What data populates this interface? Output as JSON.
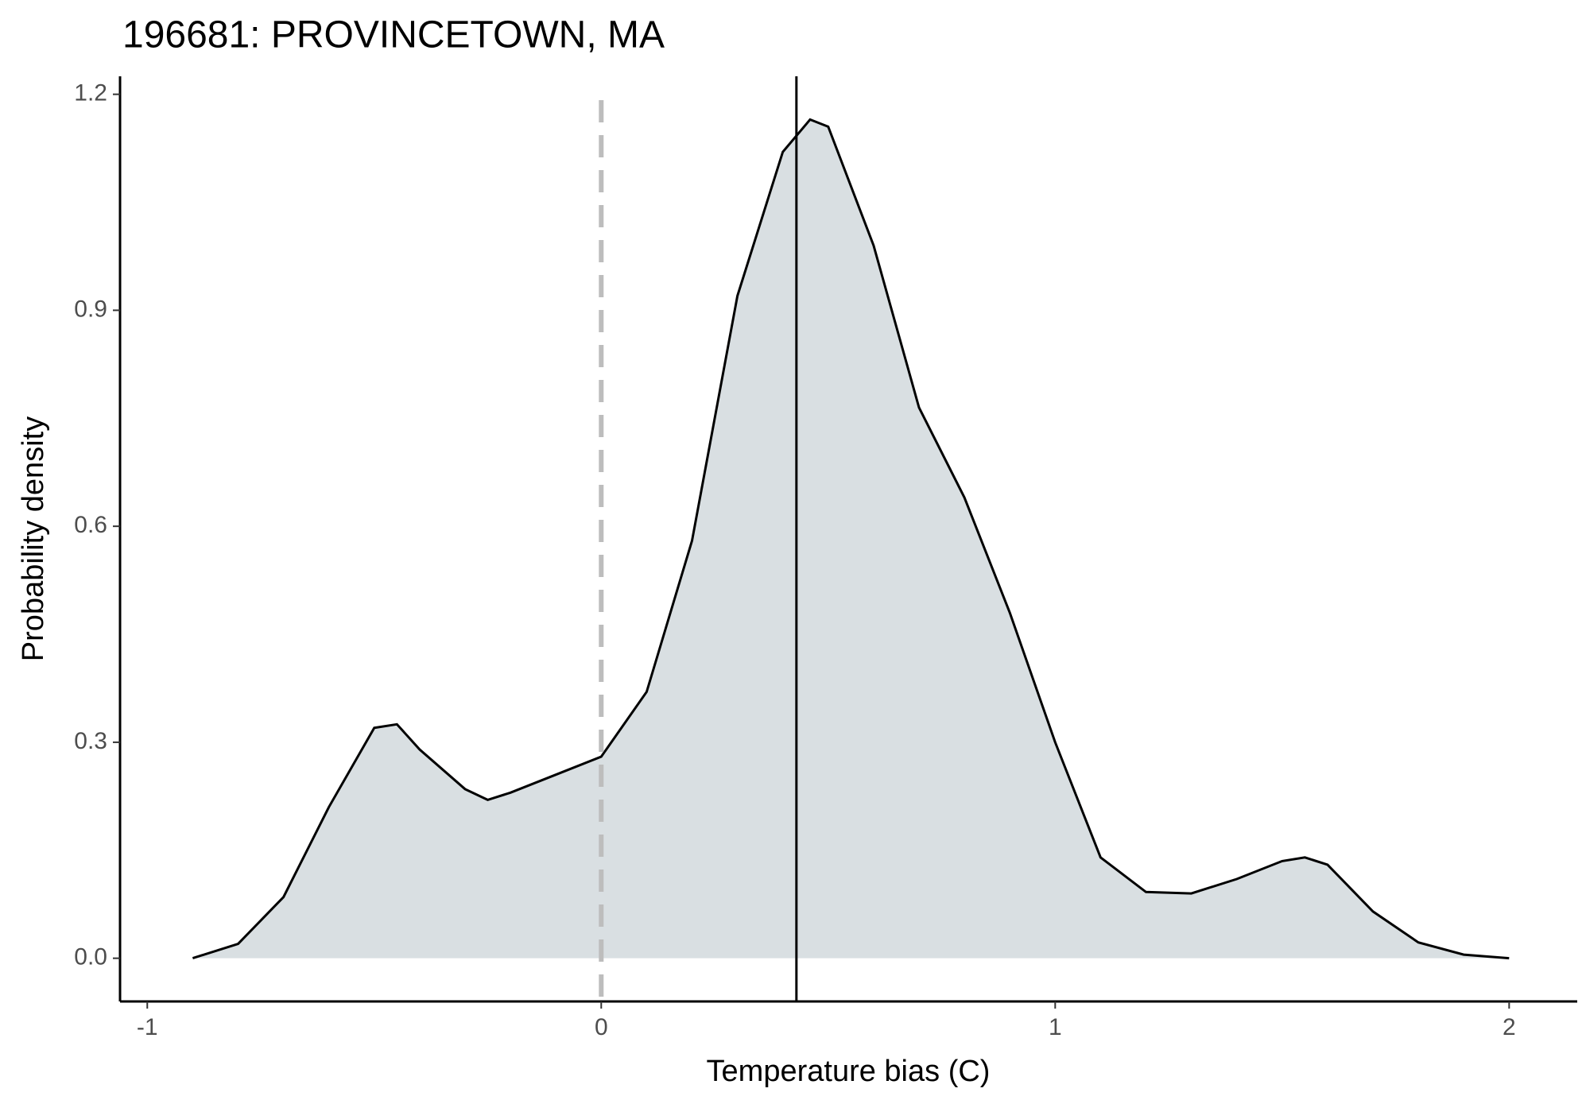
{
  "chart_data": {
    "type": "area",
    "title": "196681: PROVINCETOWN, MA",
    "x_label": "Temperature bias (C)",
    "y_label": "Probability density",
    "x": [
      -0.9,
      -0.8,
      -0.7,
      -0.6,
      -0.5,
      -0.45,
      -0.4,
      -0.3,
      -0.25,
      -0.2,
      -0.1,
      0,
      0.1,
      0.2,
      0.3,
      0.4,
      0.46,
      0.5,
      0.6,
      0.7,
      0.8,
      0.9,
      1.0,
      1.1,
      1.2,
      1.3,
      1.4,
      1.5,
      1.55,
      1.6,
      1.7,
      1.8,
      1.9,
      2.0
    ],
    "series": [
      {
        "color": "#000000",
        "fill": "#d9dfe2",
        "values": [
          0.0,
          0.02,
          0.085,
          0.21,
          0.32,
          0.325,
          0.29,
          0.235,
          0.22,
          0.23,
          0.255,
          0.28,
          0.37,
          0.58,
          0.92,
          1.12,
          1.165,
          1.155,
          0.99,
          0.765,
          0.64,
          0.48,
          0.3,
          0.14,
          0.092,
          0.09,
          0.11,
          0.135,
          0.14,
          0.13,
          0.065,
          0.022,
          0.005,
          0.0
        ]
      }
    ],
    "reference_lines": [
      {
        "x": 0,
        "style": "dashed",
        "color": "#bdbdbd"
      },
      {
        "x": 0.43,
        "style": "solid",
        "color": "#000000"
      }
    ],
    "xlim": [
      -1.06,
      2.15
    ],
    "ylim": [
      -0.06,
      1.225
    ],
    "xticks": [
      -1,
      0,
      1,
      2
    ],
    "yticks": [
      {
        "value": 0,
        "label": "0.0"
      },
      0.3,
      0.6,
      0.9,
      1.2
    ],
    "grid": false
  }
}
